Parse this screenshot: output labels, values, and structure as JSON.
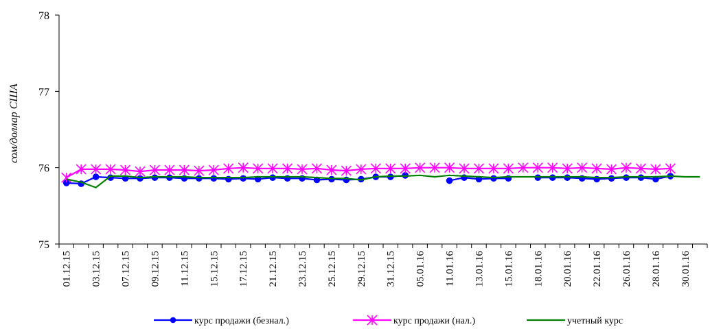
{
  "chart_data": {
    "type": "line",
    "title": "",
    "xlabel": "",
    "ylabel": "сом/доллар США",
    "ylim": [
      75,
      78
    ],
    "yticks": [
      "75",
      "76",
      "77",
      "78"
    ],
    "grid": false,
    "legend_position": "bottom",
    "x_tick_labels": [
      "01.12.15",
      "03.12.15",
      "07.12.15",
      "09.12.15",
      "11.12.15",
      "15.12.15",
      "17.12.15",
      "21.12.15",
      "23.12.15",
      "25.12.15",
      "29.12.15",
      "31.12.15",
      "05.01.16",
      "11.01.16",
      "13.01.16",
      "15.01.16",
      "18.01.16",
      "20.01.16",
      "22.01.16",
      "26.01.16",
      "28.01.16",
      "30.01.16"
    ],
    "x": [
      "01.12.15",
      "02.12.15",
      "03.12.15",
      "04.12.15",
      "07.12.15",
      "08.12.15",
      "09.12.15",
      "10.12.15",
      "11.12.15",
      "14.12.15",
      "15.12.15",
      "16.12.15",
      "17.12.15",
      "18.12.15",
      "21.12.15",
      "22.12.15",
      "23.12.15",
      "24.12.15",
      "25.12.15",
      "28.12.15",
      "29.12.15",
      "30.12.15",
      "31.12.15",
      "04.01.16",
      "05.01.16",
      "06.01.16",
      "11.01.16",
      "12.01.16",
      "13.01.16",
      "14.01.16",
      "15.01.16",
      "16.01.16",
      "18.01.16",
      "19.01.16",
      "20.01.16",
      "21.01.16",
      "22.01.16",
      "25.01.16",
      "26.01.16",
      "27.01.16",
      "28.01.16",
      "29.01.16",
      "30.01.16",
      "31.01.16"
    ],
    "series": [
      {
        "name": "курс продажи (безнал.)",
        "color": "#0000ff",
        "marker": "circle",
        "values": [
          75.8,
          75.79,
          75.88,
          75.87,
          75.86,
          75.86,
          75.87,
          75.87,
          75.86,
          75.86,
          75.86,
          75.85,
          75.86,
          75.85,
          75.87,
          75.86,
          75.86,
          75.84,
          75.85,
          75.84,
          75.85,
          75.88,
          75.88,
          75.9,
          null,
          null,
          75.83,
          75.87,
          75.85,
          75.86,
          75.86,
          null,
          75.87,
          75.87,
          75.87,
          75.86,
          75.85,
          75.86,
          75.87,
          75.87,
          75.85,
          75.89,
          null,
          null
        ]
      },
      {
        "name": "курс продажи (нал.)",
        "color": "#ff00ff",
        "marker": "star",
        "values": [
          75.87,
          75.98,
          75.98,
          75.98,
          75.97,
          75.95,
          75.97,
          75.97,
          75.97,
          75.96,
          75.97,
          75.99,
          76.0,
          75.99,
          75.99,
          75.99,
          75.98,
          75.99,
          75.97,
          75.96,
          75.98,
          75.99,
          75.99,
          75.99,
          76.0,
          76.0,
          76.0,
          75.99,
          75.99,
          75.99,
          75.99,
          76.0,
          76.0,
          76.0,
          75.99,
          76.0,
          75.99,
          75.98,
          76.0,
          75.99,
          75.98,
          75.99,
          null,
          null
        ]
      },
      {
        "name": "учетный курс",
        "color": "#008000",
        "marker": "none",
        "values": [
          75.85,
          75.81,
          75.74,
          75.89,
          75.89,
          75.87,
          75.88,
          75.88,
          75.88,
          75.87,
          75.87,
          75.87,
          75.87,
          75.88,
          75.88,
          75.88,
          75.88,
          75.87,
          75.86,
          75.86,
          75.84,
          75.88,
          75.89,
          75.89,
          75.9,
          75.88,
          75.9,
          75.89,
          75.88,
          75.87,
          75.88,
          75.88,
          75.88,
          75.88,
          75.88,
          75.88,
          75.87,
          75.87,
          75.88,
          75.88,
          75.88,
          75.89,
          75.88,
          75.88
        ]
      }
    ]
  }
}
